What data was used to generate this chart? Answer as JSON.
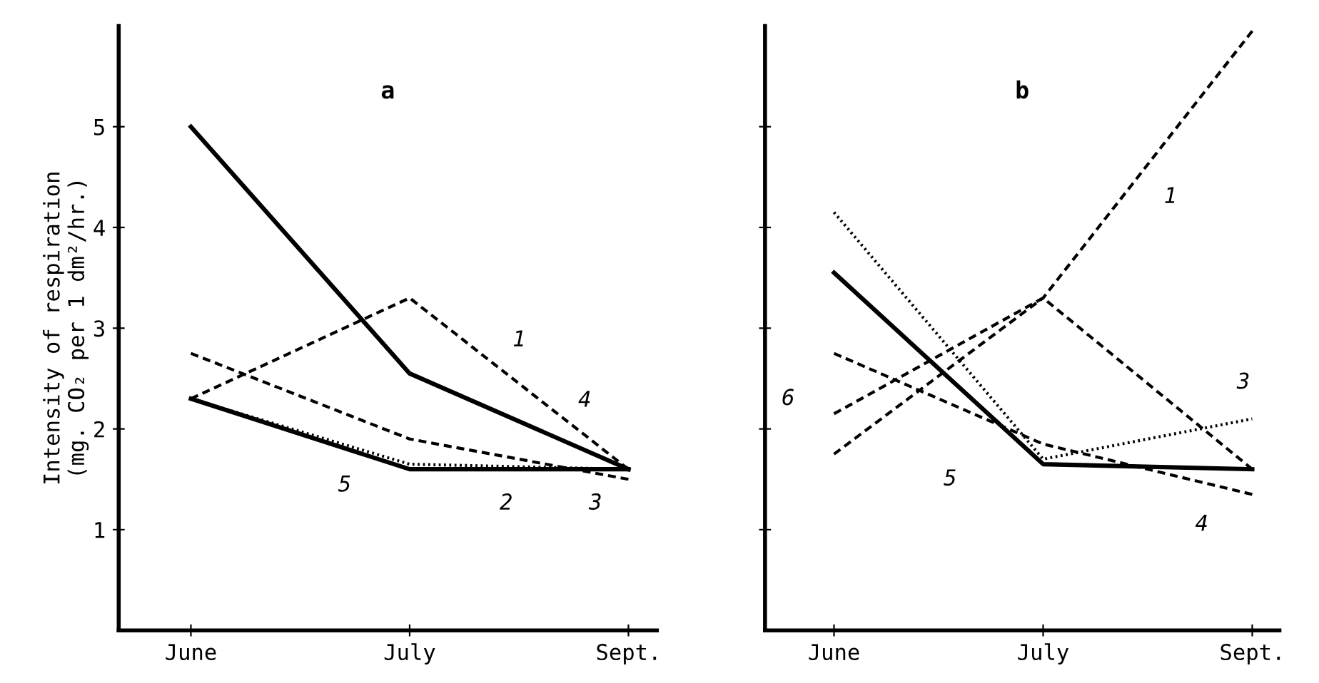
{
  "chart_data": [
    {
      "type": "line",
      "title": "a",
      "ylabel": "Intensity of respiration\n(mg. CO₂ per 1 dm²/hr.)",
      "categories": [
        "June",
        "July",
        "Sept."
      ],
      "ylim": [
        0,
        6
      ],
      "yticks": [
        1,
        2,
        3,
        4,
        5
      ],
      "grid": false,
      "legend": false,
      "series": [
        {
          "color": "#000000",
          "line_style": "dashed",
          "values": [
            2.3,
            3.3,
            1.6
          ]
        },
        {
          "color": "#000000",
          "line_style": "solid",
          "values": [
            2.3,
            1.6,
            1.6
          ]
        },
        {
          "color": "#000000",
          "line_style": "dotted",
          "values": [
            2.3,
            1.65,
            1.6
          ]
        },
        {
          "color": "#000000",
          "line_style": "solid",
          "values": [
            5.0,
            2.55,
            1.6
          ]
        },
        {
          "color": "#000000",
          "line_style": "dashed",
          "values": [
            2.75,
            1.9,
            1.5
          ]
        }
      ],
      "annotations": [
        "1",
        "2",
        "3",
        "4",
        "5"
      ]
    },
    {
      "type": "line",
      "title": "b",
      "categories": [
        "June",
        "July",
        "Sept."
      ],
      "ylim": [
        0,
        6
      ],
      "yticks": [
        1,
        2,
        3,
        4,
        5
      ],
      "tick_labels": "x",
      "grid": false,
      "legend": false,
      "series": [
        {
          "color": "#000000",
          "line_style": "dashed",
          "values": [
            1.75,
            3.3,
            5.95
          ]
        },
        {
          "color": "#000000",
          "line_style": "dotted",
          "values": [
            4.15,
            1.7,
            2.1
          ]
        },
        {
          "color": "#000000",
          "line_style": "dashed",
          "values": [
            2.75,
            1.85,
            1.35
          ]
        },
        {
          "color": "#000000",
          "line_style": "solid",
          "values": [
            3.55,
            1.65,
            1.6
          ]
        },
        {
          "color": "#000000",
          "line_style": "dashed",
          "values": [
            2.15,
            3.3,
            1.6
          ]
        }
      ],
      "annotations": [
        "1",
        "3",
        "4",
        "5",
        "6"
      ]
    }
  ]
}
